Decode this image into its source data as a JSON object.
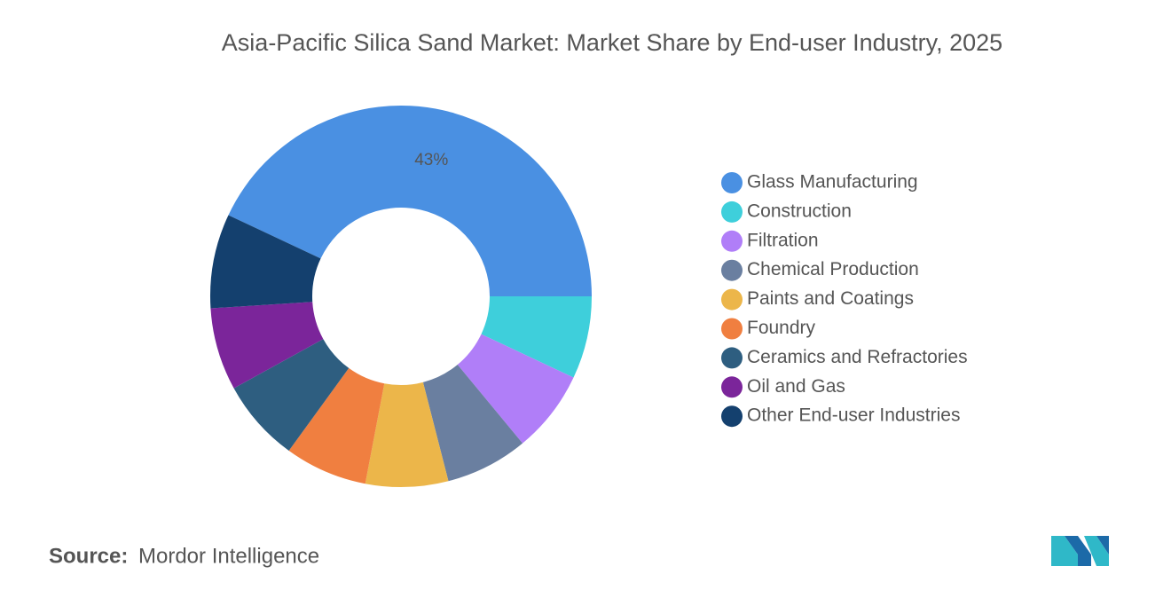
{
  "chart_data": {
    "type": "donut",
    "title": "Asia-Pacific Silica Sand Market: Market Share by End-user Industry, 2025",
    "categories": [
      "Glass Manufacturing",
      "Construction",
      "Filtration",
      "Chemical Production",
      "Paints and Coatings",
      "Foundry",
      "Ceramics and Refractories",
      "Oil and Gas",
      "Other End-user Industries"
    ],
    "values": [
      43,
      7,
      7,
      7,
      7,
      7,
      7,
      7,
      8
    ],
    "value_labels": [
      "43%",
      null,
      null,
      null,
      null,
      null,
      null,
      null,
      null
    ],
    "colors": [
      "#4a90e2",
      "#3ecfdb",
      "#b07ef8",
      "#6a7fa0",
      "#ecb64a",
      "#f07f40",
      "#2e5e80",
      "#7b259a",
      "#14406e"
    ],
    "legend": "right",
    "source_label": "Source:",
    "source": "Mordor Intelligence"
  }
}
